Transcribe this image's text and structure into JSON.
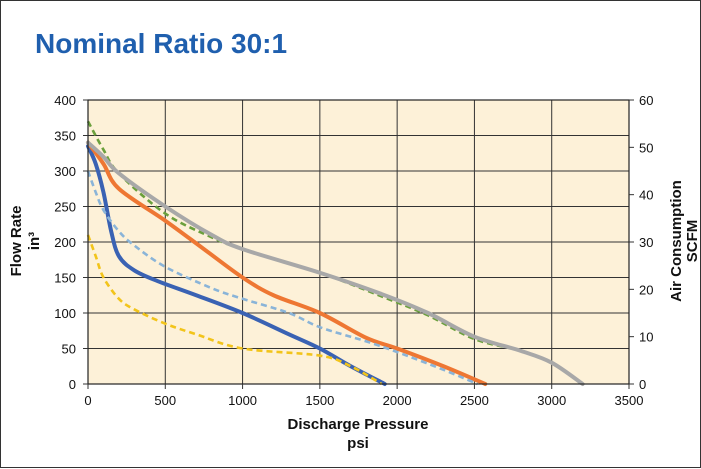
{
  "chart_data": {
    "type": "line",
    "title": "Nominal Ratio 30:1",
    "xlabel": [
      "Discharge Pressure",
      "psi"
    ],
    "ylabel_left": [
      "Flow Rate",
      "in³"
    ],
    "ylabel_right": [
      "Air Consumption",
      "SCFM"
    ],
    "xlim": [
      0,
      3500
    ],
    "ylim_left": [
      0,
      400
    ],
    "ylim_right": [
      0,
      60
    ],
    "x_ticks": [
      0,
      500,
      1000,
      1500,
      2000,
      2500,
      3000,
      3500
    ],
    "y_left_ticks": [
      0,
      50,
      100,
      150,
      200,
      250,
      300,
      350,
      400
    ],
    "y_right_ticks": [
      0,
      10,
      20,
      30,
      40,
      50,
      60
    ],
    "grid": true,
    "plot_background": "#fdf1d8",
    "series": [
      {
        "color": "#3a62b3",
        "dashed": false,
        "axis": "left",
        "x": [
          0,
          50,
          100,
          150,
          200,
          300,
          450,
          700,
          1000,
          1300,
          1500,
          1700,
          1920
        ],
        "y": [
          335,
          310,
          270,
          215,
          180,
          160,
          145,
          125,
          100,
          70,
          50,
          25,
          0
        ]
      },
      {
        "color": "#ee7733",
        "dashed": false,
        "axis": "left",
        "x": [
          0,
          100,
          200,
          500,
          750,
          1000,
          1200,
          1500,
          1800,
          2000,
          2300,
          2570
        ],
        "y": [
          340,
          310,
          275,
          230,
          190,
          150,
          125,
          100,
          65,
          50,
          25,
          0
        ]
      },
      {
        "color": "#8ab4d8",
        "dashed": true,
        "axis": "left",
        "x": [
          0,
          50,
          100,
          200,
          300,
          500,
          800,
          1000,
          1300,
          1500,
          1800,
          2000,
          2300,
          2520
        ],
        "y": [
          300,
          270,
          245,
          215,
          195,
          165,
          135,
          120,
          100,
          80,
          60,
          45,
          20,
          0
        ]
      },
      {
        "color": "#f2c41a",
        "dashed": true,
        "axis": "left",
        "x": [
          0,
          50,
          100,
          200,
          300,
          500,
          700,
          1000,
          1500,
          1700,
          1900
        ],
        "y": [
          210,
          180,
          150,
          120,
          105,
          85,
          70,
          50,
          40,
          25,
          0
        ]
      },
      {
        "color": "#6ba03c",
        "dashed": true,
        "axis": "right",
        "x": [
          0,
          100,
          200,
          500,
          800,
          1000,
          1500,
          1900,
          2200,
          2500,
          2800,
          3000,
          3200
        ],
        "y": [
          55.5,
          49.5,
          44.5,
          36,
          31,
          28.5,
          23.5,
          18.5,
          14.5,
          9.5,
          7,
          4.5,
          0
        ]
      },
      {
        "color": "#a8a8a8",
        "dashed": false,
        "axis": "right",
        "x": [
          0,
          100,
          200,
          500,
          800,
          1000,
          1500,
          1900,
          2200,
          2500,
          2800,
          3000,
          3200
        ],
        "y": [
          51,
          48,
          44.5,
          37.5,
          31.5,
          28.5,
          23.5,
          19,
          15,
          10,
          7,
          4.5,
          0
        ]
      }
    ]
  }
}
